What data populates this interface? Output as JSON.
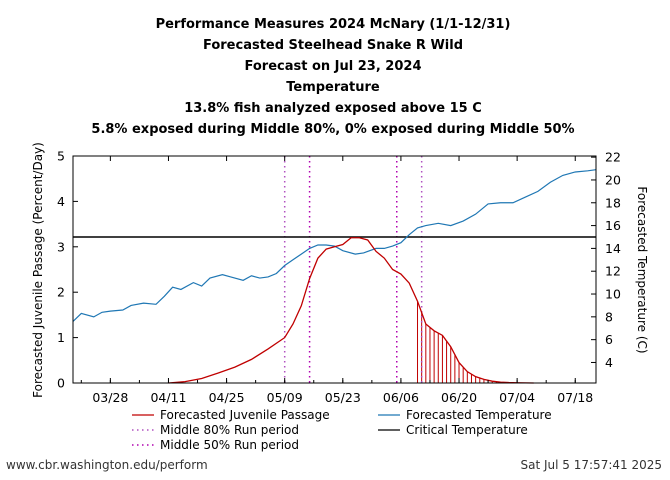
{
  "title_lines": [
    "Performance Measures 2024 McNary (1/1-12/31)",
    "Forecasted Steelhead Snake R Wild",
    "Forecast on Jul 23, 2024",
    "Temperature",
    "13.8% fish analyzed exposed above 15 C",
    "5.8% exposed during Middle 80%, 0% exposed during Middle 50%"
  ],
  "footer": {
    "url": "www.cbr.washington.edu/perform",
    "timestamp": "Sat Jul  5 17:57:41 2025"
  },
  "colors": {
    "passage": "#c00000",
    "temperature": "#1f77b4",
    "mid80": "#b050c0",
    "mid50": "#b000b0",
    "critical": "#000000"
  },
  "chart_data": {
    "type": "line",
    "x_tick_labels": [
      "03/28",
      "04/11",
      "04/25",
      "05/09",
      "05/23",
      "06/06",
      "06/20",
      "07/04",
      "07/18"
    ],
    "x_tick_dates": [
      "2024-03-28",
      "2024-04-11",
      "2024-04-25",
      "2024-05-09",
      "2024-05-23",
      "2024-06-06",
      "2024-06-20",
      "2024-07-04",
      "2024-07-18"
    ],
    "xlim": [
      "2024-03-19",
      "2024-07-23"
    ],
    "ylabel": "Forecasted Juvenile Passage (Percent/Day)",
    "ylim": [
      0,
      5
    ],
    "y_ticks": [
      "0",
      "1",
      "2",
      "3",
      "4",
      "5"
    ],
    "y2label": "Forecasted Temperature (C)",
    "y2lim": [
      2.2,
      22.1
    ],
    "y2_ticks": [
      "4",
      "6",
      "8",
      "10",
      "12",
      "14",
      "16",
      "18",
      "20",
      "22"
    ],
    "forecast_start": "2024-06-10",
    "critical_temperature": 15,
    "middle_80": [
      "2024-05-09",
      "2024-06-11"
    ],
    "middle_50": [
      "2024-05-15",
      "2024-06-05"
    ],
    "legend": [
      {
        "label": "Forecasted Juvenile Passage",
        "key": "passage",
        "style": "line"
      },
      {
        "label": "Forecasted Temperature",
        "key": "temperature",
        "style": "line"
      },
      {
        "label": "Middle 80% Run period",
        "key": "mid80",
        "style": "dotted"
      },
      {
        "label": "Critical Temperature",
        "key": "critical",
        "style": "line"
      },
      {
        "label": "Middle 50% Run period",
        "key": "mid50",
        "style": "dotted"
      }
    ],
    "series": [
      {
        "name": "Forecasted Juvenile Passage",
        "x": [
          "2024-04-11",
          "2024-04-15",
          "2024-04-19",
          "2024-04-23",
          "2024-04-27",
          "2024-05-01",
          "2024-05-05",
          "2024-05-09",
          "2024-05-11",
          "2024-05-13",
          "2024-05-15",
          "2024-05-17",
          "2024-05-19",
          "2024-05-21",
          "2024-05-23",
          "2024-05-25",
          "2024-05-27",
          "2024-05-29",
          "2024-05-31",
          "2024-06-02",
          "2024-06-04",
          "2024-06-06",
          "2024-06-08",
          "2024-06-10",
          "2024-06-12",
          "2024-06-14",
          "2024-06-16",
          "2024-06-18",
          "2024-06-20",
          "2024-06-22",
          "2024-06-24",
          "2024-06-26",
          "2024-06-28",
          "2024-06-30",
          "2024-07-02",
          "2024-07-04",
          "2024-07-08"
        ],
        "values": [
          0.0,
          0.03,
          0.1,
          0.22,
          0.35,
          0.52,
          0.75,
          1.0,
          1.3,
          1.7,
          2.3,
          2.75,
          2.95,
          3.0,
          3.05,
          3.2,
          3.2,
          3.15,
          2.9,
          2.75,
          2.5,
          2.4,
          2.2,
          1.8,
          1.3,
          1.15,
          1.05,
          0.8,
          0.45,
          0.25,
          0.14,
          0.08,
          0.04,
          0.02,
          0.01,
          0.005,
          0.0
        ]
      },
      {
        "name": "Forecasted Temperature",
        "x": [
          "2024-03-19",
          "2024-03-21",
          "2024-03-24",
          "2024-03-26",
          "2024-03-28",
          "2024-03-31",
          "2024-04-02",
          "2024-04-05",
          "2024-04-08",
          "2024-04-10",
          "2024-04-12",
          "2024-04-14",
          "2024-04-17",
          "2024-04-19",
          "2024-04-21",
          "2024-04-24",
          "2024-04-26",
          "2024-04-29",
          "2024-05-01",
          "2024-05-03",
          "2024-05-05",
          "2024-05-07",
          "2024-05-09",
          "2024-05-11",
          "2024-05-13",
          "2024-05-15",
          "2024-05-17",
          "2024-05-19",
          "2024-05-21",
          "2024-05-23",
          "2024-05-26",
          "2024-05-28",
          "2024-05-31",
          "2024-06-02",
          "2024-06-04",
          "2024-06-06",
          "2024-06-08",
          "2024-06-10",
          "2024-06-12",
          "2024-06-15",
          "2024-06-18",
          "2024-06-21",
          "2024-06-24",
          "2024-06-27",
          "2024-06-30",
          "2024-07-03",
          "2024-07-06",
          "2024-07-09",
          "2024-07-12",
          "2024-07-15",
          "2024-07-18",
          "2024-07-21",
          "2024-07-23"
        ],
        "values": [
          7.6,
          8.3,
          8.0,
          8.4,
          8.5,
          8.6,
          9.0,
          9.2,
          9.1,
          9.8,
          10.6,
          10.4,
          11.0,
          10.7,
          11.4,
          11.7,
          11.5,
          11.2,
          11.6,
          11.4,
          11.5,
          11.8,
          12.5,
          13.0,
          13.5,
          14.0,
          14.3,
          14.3,
          14.2,
          13.8,
          13.5,
          13.6,
          14.0,
          14.0,
          14.2,
          14.5,
          15.2,
          15.8,
          16.0,
          16.2,
          16.0,
          16.4,
          17.0,
          17.9,
          18.0,
          18.0,
          18.5,
          19.0,
          19.8,
          20.4,
          20.7,
          20.8,
          20.9
        ]
      }
    ]
  }
}
